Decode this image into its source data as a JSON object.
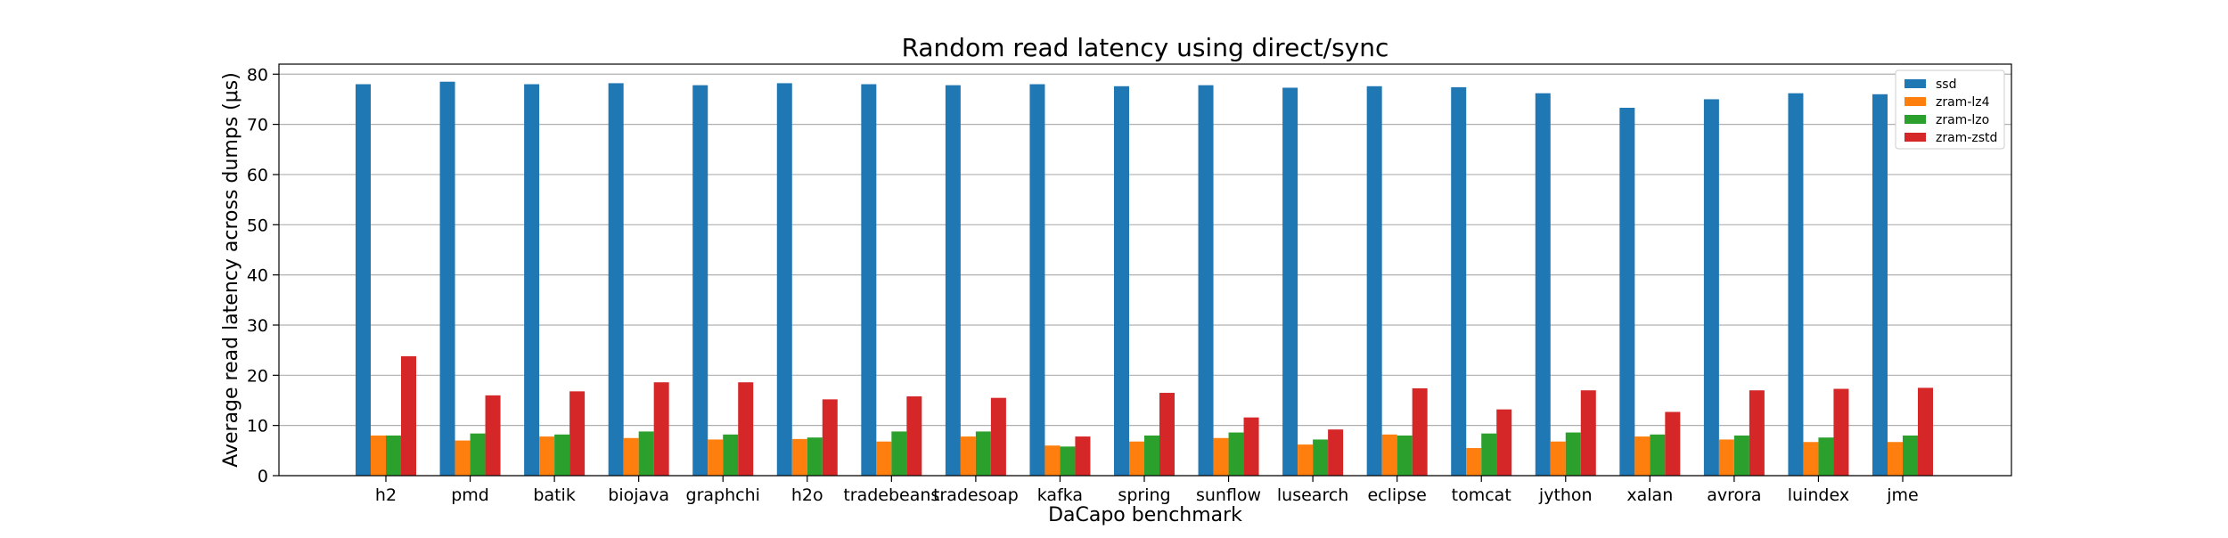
{
  "chart_data": {
    "type": "bar",
    "title": "Random read latency using direct/sync",
    "xlabel": "DaCapo benchmark",
    "ylabel": "Average read latency across dumps (μs)",
    "ylim": [
      0,
      82
    ],
    "yticks": [
      0,
      10,
      20,
      30,
      40,
      50,
      60,
      70,
      80
    ],
    "grid": "horizontal",
    "legend_position": "top-right",
    "categories": [
      "h2",
      "pmd",
      "batik",
      "biojava",
      "graphchi",
      "h2o",
      "tradebeans",
      "tradesoap",
      "kafka",
      "spring",
      "sunflow",
      "lusearch",
      "eclipse",
      "tomcat",
      "jython",
      "xalan",
      "avrora",
      "luindex",
      "jme"
    ],
    "series": [
      {
        "name": "ssd",
        "color": "#1f77b4",
        "values": [
          78.0,
          78.5,
          78.0,
          78.2,
          77.8,
          78.2,
          78.0,
          77.8,
          78.0,
          77.6,
          77.8,
          77.3,
          77.6,
          77.4,
          76.2,
          73.3,
          75.0,
          76.2,
          76.0
        ]
      },
      {
        "name": "zram-lz4",
        "color": "#ff7f0e",
        "values": [
          8.0,
          7.0,
          7.8,
          7.5,
          7.2,
          7.3,
          6.8,
          7.8,
          6.0,
          6.8,
          7.5,
          6.2,
          8.2,
          5.5,
          6.8,
          7.8,
          7.2,
          6.7,
          6.7
        ]
      },
      {
        "name": "zram-lzo",
        "color": "#2ca02c",
        "values": [
          8.0,
          8.4,
          8.2,
          8.8,
          8.2,
          7.6,
          8.8,
          8.8,
          5.8,
          8.0,
          8.6,
          7.2,
          8.0,
          8.4,
          8.6,
          8.2,
          8.0,
          7.6,
          8.0
        ]
      },
      {
        "name": "zram-zstd",
        "color": "#d62728",
        "values": [
          23.8,
          16.0,
          16.8,
          18.6,
          18.6,
          15.2,
          15.8,
          15.5,
          7.8,
          16.5,
          11.6,
          9.2,
          17.4,
          13.2,
          17.0,
          12.7,
          17.0,
          17.3,
          17.5
        ]
      }
    ]
  }
}
